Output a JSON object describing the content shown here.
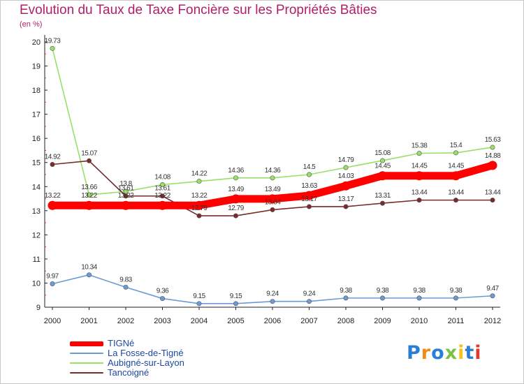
{
  "chart_data": {
    "type": "line",
    "title": "Evolution du Taux de Taxe Foncière sur les Propriétés Bâties",
    "subtitle": "(en %)",
    "xlabel": "",
    "ylabel": "(en %)",
    "categories": [
      "2000",
      "2001",
      "2002",
      "2003",
      "2004",
      "2005",
      "2006",
      "2007",
      "2008",
      "2009",
      "2010",
      "2011",
      "2012"
    ],
    "y_ticks": [
      9,
      10,
      11,
      12,
      13,
      14,
      15,
      16,
      17,
      18,
      19,
      20
    ],
    "ylim": [
      9,
      20
    ],
    "grid": false,
    "legend_position": "bottom-left",
    "series": [
      {
        "name": "TIGNé",
        "color": "#ff0000",
        "emphasis": true,
        "values": [
          13.22,
          13.22,
          13.22,
          13.22,
          13.22,
          13.49,
          13.49,
          13.63,
          14.03,
          14.45,
          14.45,
          14.45,
          14.88
        ],
        "labels": [
          "13.22",
          "13.22",
          "13.22",
          "13.22",
          "13.22",
          "13.49",
          "13.49",
          "13.63",
          "14.03",
          "14.45",
          "14.45",
          "14.45",
          "14.88"
        ]
      },
      {
        "name": "La Fosse-de-Tigné",
        "color": "#6a9bd4",
        "values": [
          9.97,
          10.34,
          9.83,
          9.36,
          9.15,
          9.15,
          9.24,
          9.24,
          9.38,
          9.38,
          9.38,
          9.38,
          9.47
        ],
        "labels": [
          "9.97",
          "10.34",
          "9.83",
          "9.36",
          "9.15",
          "9.15",
          "9.24",
          "9.24",
          "9.38",
          "9.38",
          "9.38",
          "9.38",
          "9.47"
        ]
      },
      {
        "name": "Aubigné-sur-Layon",
        "color": "#99e066",
        "values": [
          19.73,
          13.66,
          13.8,
          14.08,
          14.22,
          14.36,
          14.36,
          14.5,
          14.79,
          15.08,
          15.38,
          15.4,
          15.63
        ],
        "labels": [
          "19.73",
          "13.66",
          "13.8",
          "14.08",
          "14.22",
          "14.36",
          "14.36",
          "14.5",
          "14.79",
          "15.08",
          "15.38",
          "15.4",
          "15.63"
        ]
      },
      {
        "name": "Tancoigné",
        "color": "#7a2a2a",
        "values": [
          14.92,
          15.07,
          13.61,
          13.61,
          12.79,
          12.79,
          13.04,
          13.17,
          13.17,
          13.31,
          13.44,
          13.44,
          13.44
        ],
        "labels": [
          "14.92",
          "15.07",
          "13.61",
          "13.61",
          "12.79",
          "12.79",
          "13.04",
          "13.17",
          "13.17",
          "13.31",
          "13.44",
          "13.44",
          "13.44"
        ]
      }
    ]
  },
  "logo": {
    "text": "Proxiti",
    "letters": [
      "P",
      "r",
      "o",
      "x",
      "i",
      "t",
      "i"
    ],
    "colors": [
      "#2a7fd4",
      "#f28a1a",
      "#2a7fd4",
      "#7ac143",
      "#f2c21a",
      "#2a7fd4",
      "#e23a2a"
    ]
  }
}
